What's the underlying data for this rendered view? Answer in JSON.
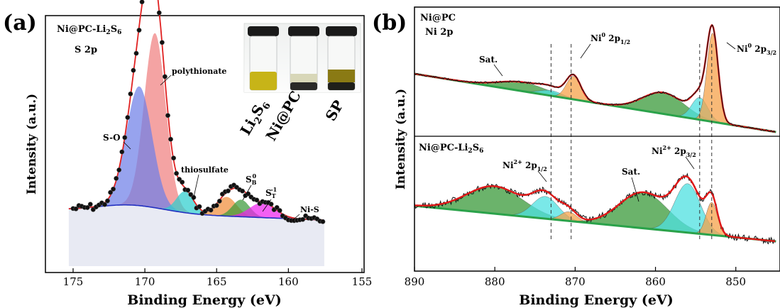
{
  "panels": [
    {
      "id": "a",
      "label": "(a)",
      "sample": "Ni@PC-Li2S6",
      "core_level": "S 2p",
      "chart_data": {
        "type": "line",
        "xlabel": "Binding Energy (eV)",
        "ylabel": "Intensity (a.u.)",
        "xlim": [
          155,
          177
        ],
        "x_reversed": true,
        "x_ticks": [
          175,
          170,
          165,
          160,
          155
        ],
        "peak_labels": [
          "polythionate",
          "S-O",
          "thiosulfate",
          "S_B^0",
          "S_T^-1",
          "Ni-S"
        ],
        "inset_vials": [
          "Li2S6",
          "Ni@PC",
          "SP"
        ],
        "series": [
          {
            "name": "polythionate",
            "color": "#f08080",
            "center": 169.3,
            "height": 0.82,
            "width": 0.75
          },
          {
            "name": "S-O",
            "color": "#6f7fe8",
            "center": 170.4,
            "height": 0.56,
            "width": 0.9
          },
          {
            "name": "thiosulfate",
            "color": "#2ecfcf",
            "center": 167.2,
            "height": 0.1,
            "width": 0.6
          },
          {
            "name": "S_B^0",
            "color": "#f08d3a",
            "center": 164.3,
            "height": 0.09,
            "width": 0.7
          },
          {
            "name": "S_T^-1",
            "color": "#3a9a3a",
            "center": 163.3,
            "height": 0.08,
            "width": 0.6
          },
          {
            "name": "Ni-S",
            "color": "#ee22ee",
            "center": 161.8,
            "height": 0.07,
            "width": 0.9
          }
        ]
      }
    },
    {
      "id": "b",
      "label": "(b)",
      "chart_data": {
        "type": "line",
        "xlabel": "Binding Energy (eV)",
        "ylabel": "Intensity (a.u.)",
        "xlim": [
          845,
          890
        ],
        "x_reversed": true,
        "x_ticks": [
          890,
          880,
          870,
          860,
          850
        ],
        "reference_lines": [
          873.0,
          870.5,
          854.5,
          853.0
        ],
        "subplots": [
          {
            "sample": "Ni@PC",
            "core_level": "Ni 2p",
            "peak_labels": [
              "Sat.",
              "Ni^0 2p_1/2",
              "Ni^0 2p_3/2"
            ],
            "series": [
              {
                "name": "Sat. 2p1/2",
                "color": "#3a9a3a",
                "center": 876.5,
                "height": 0.1,
                "width": 3.0
              },
              {
                "name": "Ni2+ 2p1/2",
                "color": "#4de0e0",
                "center": 873.0,
                "height": 0.06,
                "width": 1.4
              },
              {
                "name": "Ni0 2p1/2",
                "color": "#f5a24a",
                "center": 870.2,
                "height": 0.26,
                "width": 0.9
              },
              {
                "name": "Sat. 2p3/2",
                "color": "#3a9a3a",
                "center": 859.0,
                "height": 0.24,
                "width": 2.6
              },
              {
                "name": "Ni2+ 2p3/2",
                "color": "#4de0e0",
                "center": 854.5,
                "height": 0.25,
                "width": 1.0
              },
              {
                "name": "Ni0 2p3/2",
                "color": "#f5a24a",
                "center": 852.9,
                "height": 1.0,
                "width": 0.7
              }
            ]
          },
          {
            "sample": "Ni@PC-Li2S6",
            "core_level": "",
            "peak_labels": [
              "Ni^2+ 2p_1/2",
              "Sat.",
              "Ni^2+ 2p_3/2"
            ],
            "series": [
              {
                "name": "Sat. 2p1/2",
                "color": "#3a9a3a",
                "center": 880.0,
                "height": 0.42,
                "width": 3.5
              },
              {
                "name": "Ni2+ 2p1/2",
                "color": "#4de0e0",
                "center": 873.7,
                "height": 0.34,
                "width": 1.6
              },
              {
                "name": "Ni0 2p1/2",
                "color": "#f5a24a",
                "center": 870.8,
                "height": 0.14,
                "width": 1.0
              },
              {
                "name": "Sat. 2p3/2",
                "color": "#3a9a3a",
                "center": 861.5,
                "height": 0.55,
                "width": 3.0
              },
              {
                "name": "Ni2+ 2p3/2",
                "color": "#4de0e0",
                "center": 856.0,
                "height": 0.75,
                "width": 1.6
              },
              {
                "name": "Ni0 2p3/2",
                "color": "#f5a24a",
                "center": 853.0,
                "height": 0.5,
                "width": 0.7
              }
            ]
          }
        ]
      }
    }
  ]
}
